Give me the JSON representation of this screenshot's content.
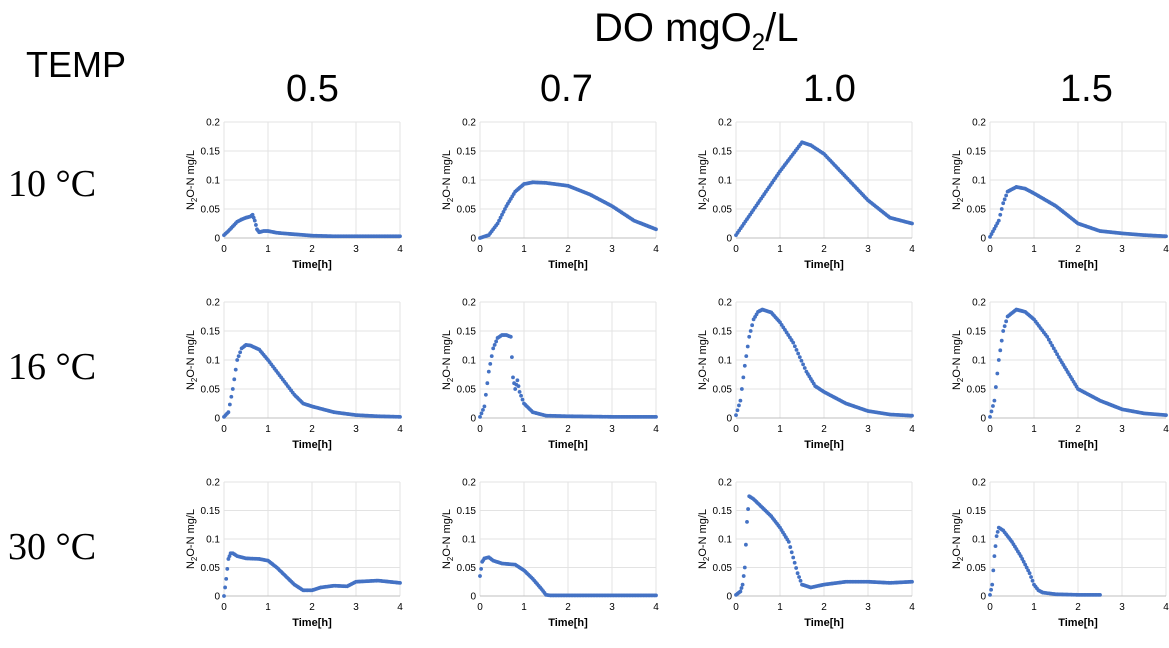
{
  "header": {
    "do_prefix": "DO mgO",
    "do_sub": "2",
    "do_suffix": "/L",
    "temp_label": "TEMP"
  },
  "columns": [
    "0.5",
    "0.7",
    "1.0",
    "1.5"
  ],
  "rows": [
    "10 °C",
    "16 °C",
    "30 °C"
  ],
  "series_color": "#4472C4",
  "chart_data": [
    {
      "type": "scatter",
      "row": 0,
      "col": 0,
      "xlabel": "Time[h]",
      "ylabel": "N2O-N mg/L",
      "xlim": [
        0,
        4
      ],
      "ylim": [
        0,
        0.2
      ],
      "x": [
        0,
        0.1,
        0.2,
        0.3,
        0.4,
        0.5,
        0.6,
        0.65,
        0.7,
        0.75,
        0.8,
        0.9,
        1.0,
        1.2,
        1.5,
        2,
        2.5,
        3,
        3.5,
        4
      ],
      "y": [
        0.005,
        0.012,
        0.02,
        0.028,
        0.032,
        0.035,
        0.037,
        0.04,
        0.03,
        0.015,
        0.01,
        0.012,
        0.012,
        0.009,
        0.007,
        0.004,
        0.003,
        0.003,
        0.003,
        0.003
      ]
    },
    {
      "type": "scatter",
      "row": 0,
      "col": 1,
      "xlabel": "Time[h]",
      "ylabel": "N2O-N mg/L",
      "xlim": [
        0,
        4
      ],
      "ylim": [
        0,
        0.2
      ],
      "x": [
        0,
        0.2,
        0.4,
        0.6,
        0.8,
        1.0,
        1.2,
        1.5,
        2,
        2.5,
        3,
        3.5,
        4
      ],
      "y": [
        0,
        0.005,
        0.025,
        0.055,
        0.08,
        0.093,
        0.096,
        0.095,
        0.09,
        0.075,
        0.055,
        0.03,
        0.015
      ]
    },
    {
      "type": "scatter",
      "row": 0,
      "col": 2,
      "xlabel": "Time[h]",
      "ylabel": "N2O-N mg/L",
      "xlim": [
        0,
        4
      ],
      "ylim": [
        0,
        0.2
      ],
      "x": [
        0,
        0.5,
        1.0,
        1.5,
        1.7,
        2,
        2.5,
        3,
        3.5,
        4
      ],
      "y": [
        0.005,
        0.06,
        0.115,
        0.165,
        0.16,
        0.145,
        0.105,
        0.065,
        0.035,
        0.025
      ]
    },
    {
      "type": "scatter",
      "row": 0,
      "col": 3,
      "xlabel": "Time[h]",
      "ylabel": "N2O-N mg/L",
      "xlim": [
        0,
        4
      ],
      "ylim": [
        0,
        0.2
      ],
      "x": [
        0,
        0.2,
        0.3,
        0.4,
        0.6,
        0.8,
        1.0,
        1.5,
        2,
        2.5,
        3,
        3.5,
        4
      ],
      "y": [
        0.002,
        0.03,
        0.06,
        0.08,
        0.088,
        0.085,
        0.077,
        0.055,
        0.025,
        0.012,
        0.008,
        0.005,
        0.003
      ]
    },
    {
      "type": "scatter",
      "row": 1,
      "col": 0,
      "xlabel": "Time[h]",
      "ylabel": "N2O-N mg/L",
      "xlim": [
        0,
        4
      ],
      "ylim": [
        0,
        0.2
      ],
      "x": [
        0,
        0.1,
        0.2,
        0.3,
        0.4,
        0.5,
        0.6,
        0.8,
        1.0,
        1.3,
        1.6,
        1.8,
        2.0,
        2.5,
        3,
        3.5,
        4
      ],
      "y": [
        0.002,
        0.01,
        0.05,
        0.1,
        0.12,
        0.126,
        0.125,
        0.118,
        0.1,
        0.07,
        0.04,
        0.025,
        0.02,
        0.01,
        0.005,
        0.003,
        0.002
      ]
    },
    {
      "type": "scatter",
      "row": 1,
      "col": 1,
      "xlabel": "Time[h]",
      "ylabel": "N2O-N mg/L",
      "xlim": [
        0,
        4
      ],
      "ylim": [
        0,
        0.2
      ],
      "x": [
        0,
        0.1,
        0.2,
        0.3,
        0.4,
        0.5,
        0.6,
        0.7,
        0.75,
        0.8,
        0.85,
        0.9,
        1.0,
        1.2,
        1.5,
        2,
        3,
        4
      ],
      "y": [
        0.002,
        0.02,
        0.08,
        0.12,
        0.138,
        0.143,
        0.143,
        0.14,
        0.07,
        0.05,
        0.065,
        0.045,
        0.025,
        0.01,
        0.004,
        0.003,
        0.002,
        0.002
      ]
    },
    {
      "type": "scatter",
      "row": 1,
      "col": 2,
      "xlabel": "Time[h]",
      "ylabel": "N2O-N mg/L",
      "xlim": [
        0,
        4
      ],
      "ylim": [
        0,
        0.2
      ],
      "x": [
        0,
        0.1,
        0.2,
        0.3,
        0.4,
        0.5,
        0.6,
        0.8,
        1.0,
        1.3,
        1.6,
        1.8,
        2.0,
        2.5,
        3,
        3.5,
        4
      ],
      "y": [
        0.005,
        0.03,
        0.09,
        0.14,
        0.17,
        0.183,
        0.187,
        0.182,
        0.165,
        0.13,
        0.08,
        0.055,
        0.045,
        0.025,
        0.012,
        0.006,
        0.004
      ]
    },
    {
      "type": "scatter",
      "row": 1,
      "col": 3,
      "xlabel": "Time[h]",
      "ylabel": "N2O-N mg/L",
      "xlim": [
        0,
        4
      ],
      "ylim": [
        0,
        0.2
      ],
      "x": [
        0,
        0.1,
        0.2,
        0.3,
        0.4,
        0.6,
        0.8,
        1.0,
        1.3,
        1.6,
        1.8,
        2.0,
        2.5,
        3,
        3.5,
        4
      ],
      "y": [
        0.002,
        0.03,
        0.1,
        0.15,
        0.175,
        0.187,
        0.183,
        0.17,
        0.14,
        0.1,
        0.075,
        0.05,
        0.03,
        0.015,
        0.008,
        0.005
      ]
    },
    {
      "type": "scatter",
      "row": 2,
      "col": 0,
      "xlabel": "Time[h]",
      "ylabel": "N2O-N mg/L",
      "xlim": [
        0,
        4
      ],
      "ylim": [
        0,
        0.2
      ],
      "x": [
        0,
        0.05,
        0.1,
        0.15,
        0.2,
        0.3,
        0.5,
        0.8,
        1.0,
        1.2,
        1.4,
        1.6,
        1.8,
        2.0,
        2.2,
        2.5,
        2.8,
        3.0,
        3.5,
        4.0
      ],
      "y": [
        0,
        0.03,
        0.065,
        0.075,
        0.075,
        0.07,
        0.066,
        0.065,
        0.062,
        0.05,
        0.035,
        0.02,
        0.01,
        0.01,
        0.015,
        0.018,
        0.017,
        0.025,
        0.027,
        0.023
      ]
    },
    {
      "type": "scatter",
      "row": 2,
      "col": 1,
      "xlabel": "Time[h]",
      "ylabel": "N2O-N mg/L",
      "xlim": [
        0,
        4
      ],
      "ylim": [
        0,
        0.2
      ],
      "x": [
        0,
        0.05,
        0.1,
        0.2,
        0.3,
        0.5,
        0.8,
        1.0,
        1.2,
        1.4,
        1.5,
        1.6,
        2,
        3,
        4
      ],
      "y": [
        0.035,
        0.06,
        0.066,
        0.068,
        0.062,
        0.057,
        0.055,
        0.045,
        0.03,
        0.012,
        0.002,
        0.001,
        0.001,
        0.001,
        0.001
      ]
    },
    {
      "type": "scatter",
      "row": 2,
      "col": 2,
      "xlabel": "Time[h]",
      "ylabel": "N2O-N mg/L",
      "xlim": [
        0,
        4
      ],
      "ylim": [
        0,
        0.2
      ],
      "x": [
        0,
        0.1,
        0.15,
        0.2,
        0.25,
        0.3,
        0.4,
        0.6,
        0.8,
        1.0,
        1.2,
        1.4,
        1.5,
        1.7,
        2.0,
        2.5,
        3.0,
        3.5,
        4.0
      ],
      "y": [
        0.002,
        0.008,
        0.02,
        0.05,
        0.13,
        0.175,
        0.17,
        0.155,
        0.14,
        0.12,
        0.095,
        0.04,
        0.02,
        0.015,
        0.02,
        0.025,
        0.025,
        0.023,
        0.025
      ]
    },
    {
      "type": "scatter",
      "row": 2,
      "col": 3,
      "xlabel": "Time[h]",
      "ylabel": "N2O-N mg/L",
      "xlim": [
        0,
        4
      ],
      "ylim": [
        0,
        0.2
      ],
      "x": [
        0,
        0.05,
        0.1,
        0.15,
        0.2,
        0.3,
        0.5,
        0.7,
        0.9,
        1.0,
        1.1,
        1.2,
        1.5,
        2.0,
        2.5
      ],
      "y": [
        0.002,
        0.02,
        0.07,
        0.105,
        0.12,
        0.115,
        0.095,
        0.07,
        0.04,
        0.02,
        0.01,
        0.006,
        0.003,
        0.002,
        0.002
      ]
    }
  ]
}
